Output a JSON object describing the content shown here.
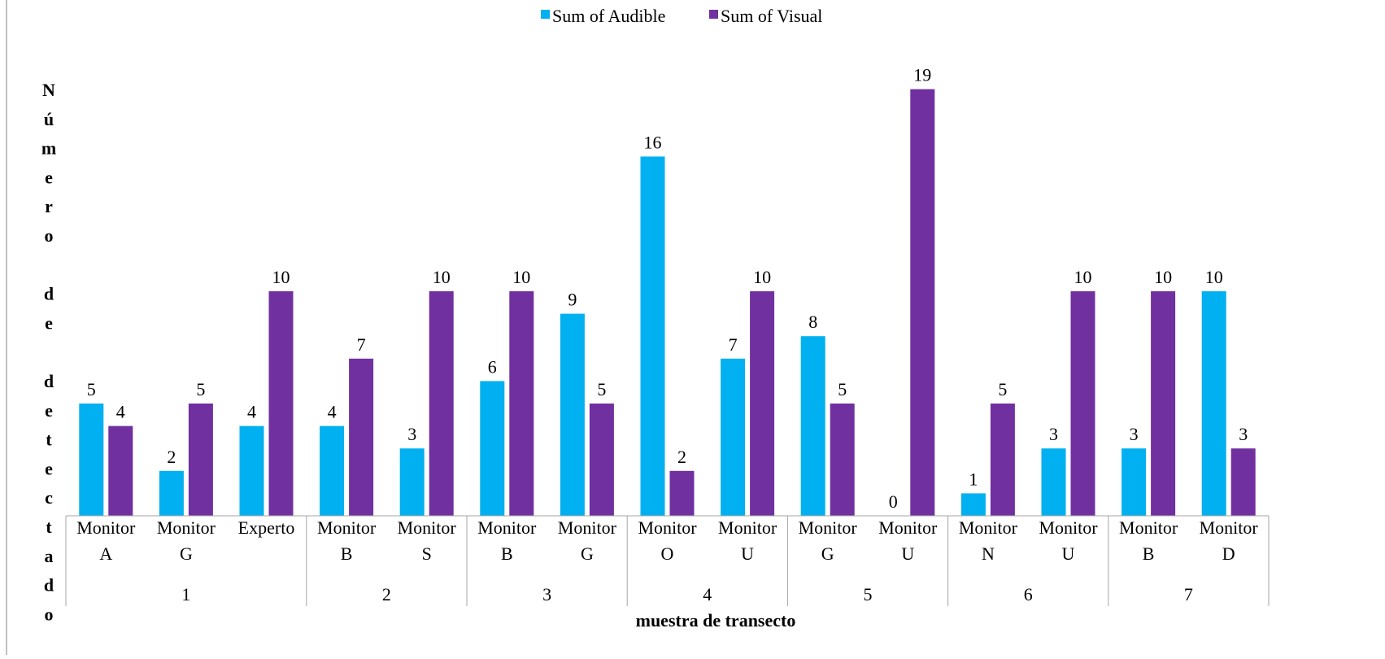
{
  "chart_data": {
    "type": "bar",
    "title": "",
    "xlabel": "muestra de transecto",
    "ylabel": "Número de detectado",
    "ylabel_vertical_letters": [
      "N",
      "ú",
      "m",
      "e",
      "r",
      "o",
      "",
      "d",
      "e",
      "",
      "d",
      "e",
      "t",
      "e",
      "c",
      "t",
      "a",
      "d",
      "o"
    ],
    "ylim": [
      0,
      19
    ],
    "grid": false,
    "legend_position": "top",
    "series": [
      {
        "name": "Sum of Audible",
        "color": "#00b0f0",
        "values": [
          5,
          2,
          4,
          4,
          3,
          6,
          9,
          16,
          7,
          8,
          0,
          1,
          3,
          3,
          10
        ]
      },
      {
        "name": "Sum of Visual",
        "color": "#7030a0",
        "values": [
          4,
          5,
          10,
          7,
          10,
          10,
          5,
          2,
          10,
          5,
          19,
          5,
          10,
          10,
          3
        ]
      }
    ],
    "categories": [
      {
        "line1": "Monitor",
        "line2": "A"
      },
      {
        "line1": "Monitor",
        "line2": "G"
      },
      {
        "line1": "Experto",
        "line2": ""
      },
      {
        "line1": "Monitor",
        "line2": "B"
      },
      {
        "line1": "Monitor",
        "line2": "S"
      },
      {
        "line1": "Monitor",
        "line2": "B"
      },
      {
        "line1": "Monitor",
        "line2": "G"
      },
      {
        "line1": "Monitor",
        "line2": "O"
      },
      {
        "line1": "Monitor",
        "line2": "U"
      },
      {
        "line1": "Monitor",
        "line2": "G"
      },
      {
        "line1": "Monitor",
        "line2": "U"
      },
      {
        "line1": "Monitor",
        "line2": "N"
      },
      {
        "line1": "Monitor",
        "line2": "U"
      },
      {
        "line1": "Monitor",
        "line2": "B"
      },
      {
        "line1": "Monitor",
        "line2": "D"
      }
    ],
    "groups": [
      {
        "label": "1",
        "count": 3
      },
      {
        "label": "2",
        "count": 2
      },
      {
        "label": "3",
        "count": 2
      },
      {
        "label": "4",
        "count": 2
      },
      {
        "label": "5",
        "count": 2
      },
      {
        "label": "6",
        "count": 2
      },
      {
        "label": "7",
        "count": 2
      }
    ]
  }
}
